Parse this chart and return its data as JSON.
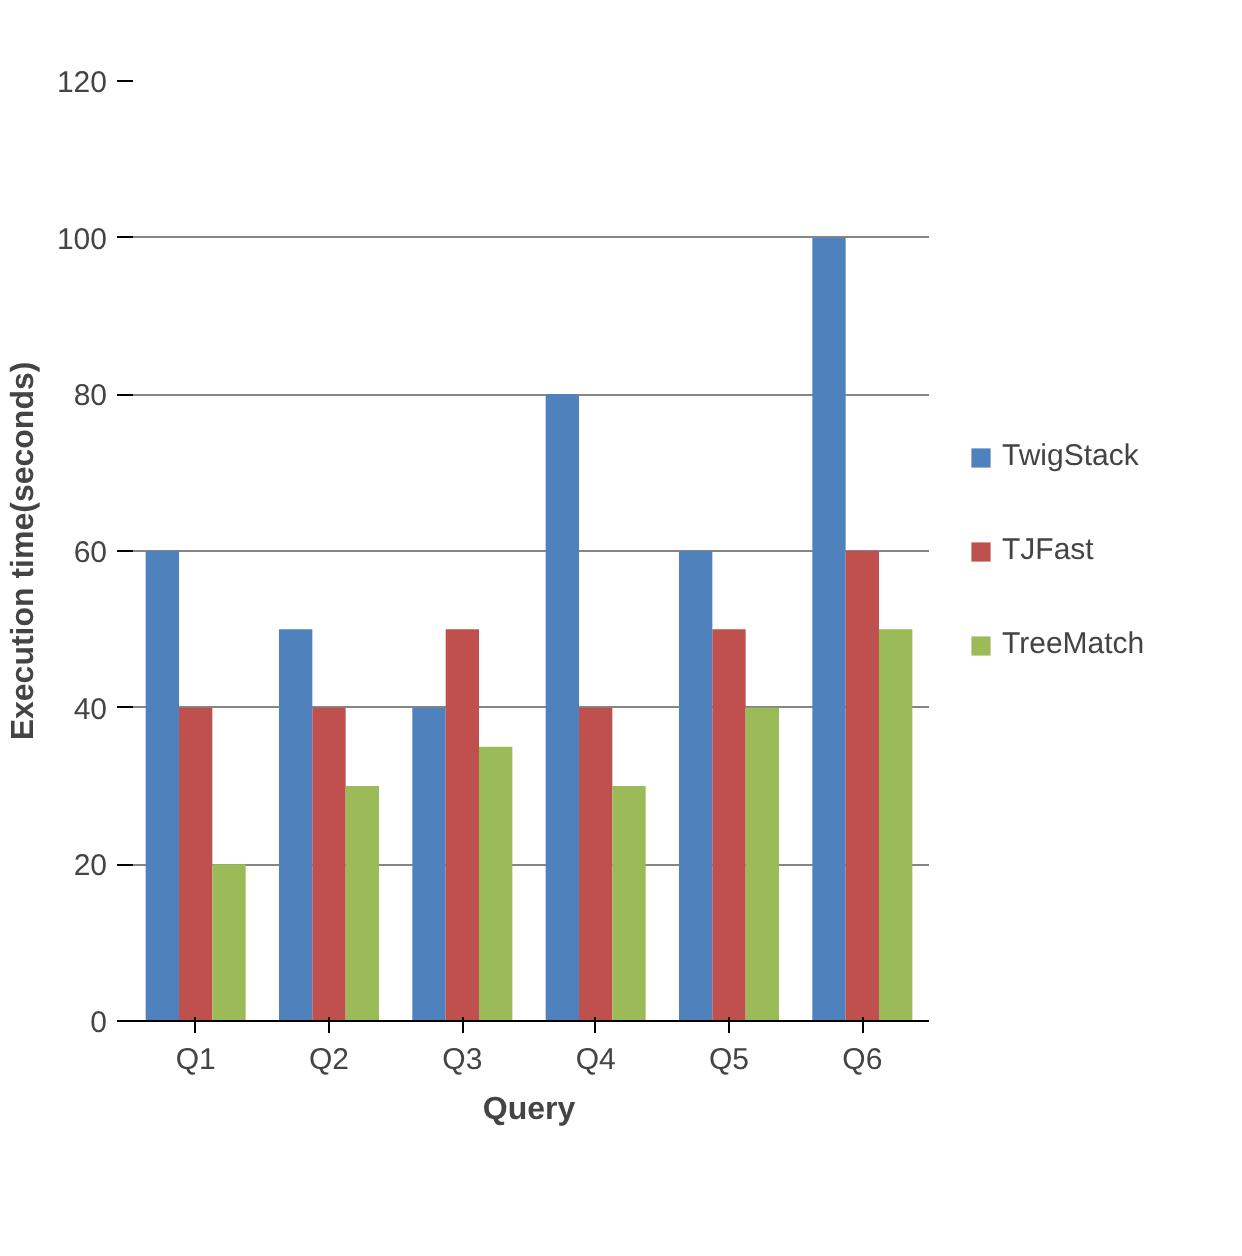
{
  "chart_data": {
    "type": "bar",
    "xlabel": "Query",
    "ylabel": "Execution time(seconds)",
    "categories": [
      "Q1",
      "Q2",
      "Q3",
      "Q4",
      "Q5",
      "Q6"
    ],
    "series": [
      {
        "name": "TwigStack",
        "color": "#4f81bd",
        "values": [
          60,
          50,
          40,
          80,
          60,
          100
        ]
      },
      {
        "name": "TJFast",
        "color": "#c0504d",
        "values": [
          40,
          40,
          50,
          40,
          50,
          60
        ]
      },
      {
        "name": "TreeMatch",
        "color": "#9bbb59",
        "values": [
          20,
          30,
          35,
          30,
          40,
          50
        ]
      }
    ],
    "ylim": [
      0,
      120
    ],
    "yticks": [
      0,
      20,
      40,
      60,
      80,
      100,
      120
    ],
    "grid": "y",
    "legend": "right"
  }
}
